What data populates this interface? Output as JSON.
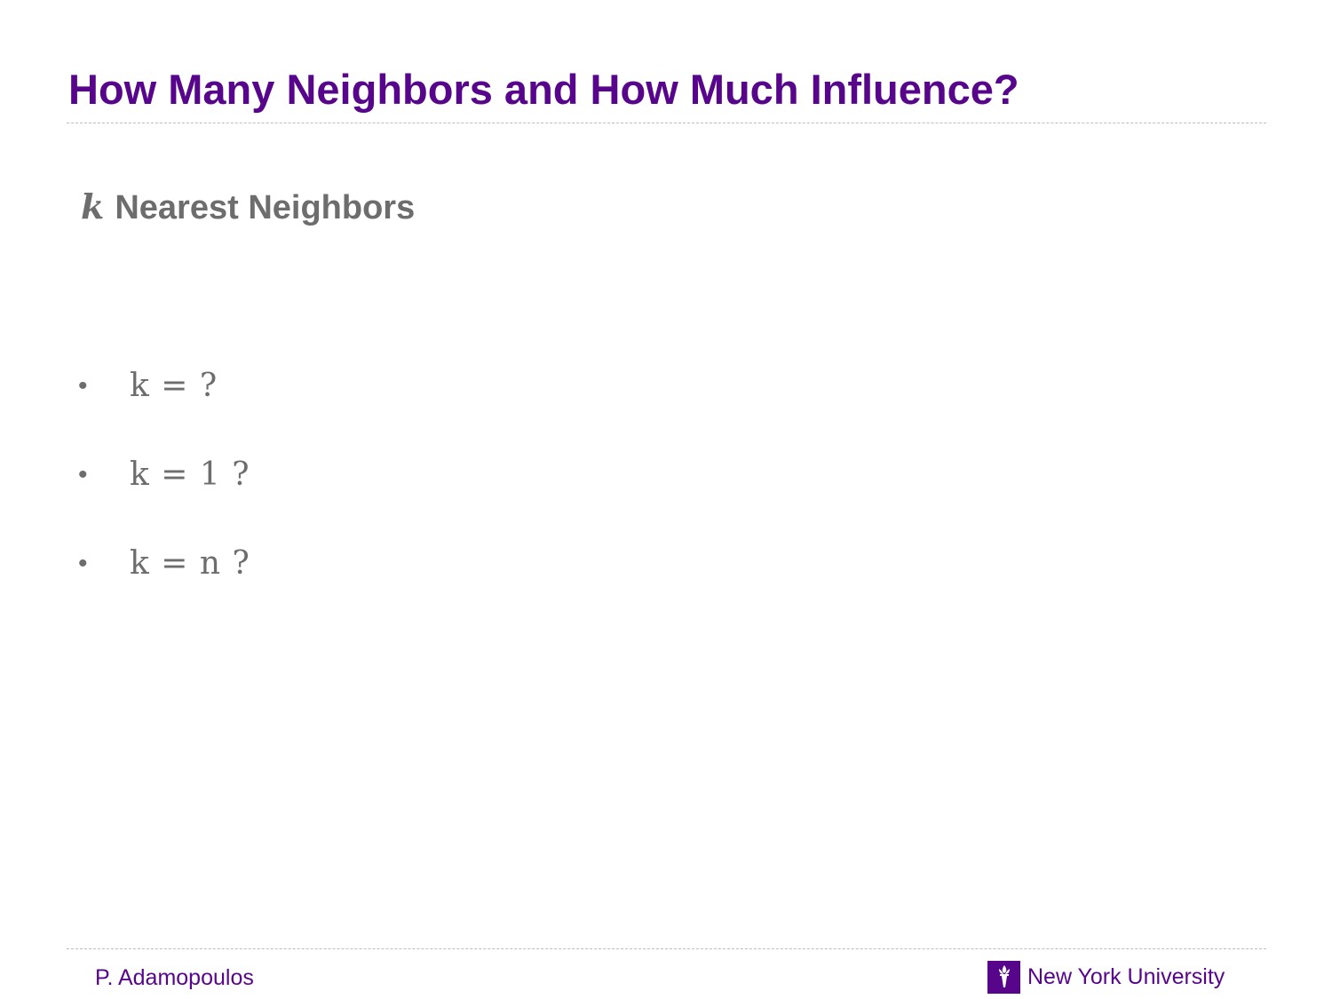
{
  "slide": {
    "title": "How Many Neighbors and How Much Influence?",
    "heading": {
      "variable": "k",
      "text": "Nearest Neighbors"
    },
    "bullets": [
      {
        "marker": "•",
        "expression": "k = ?"
      },
      {
        "marker": "•",
        "expression": "k = 1 ?"
      },
      {
        "marker": "•",
        "expression": "k = n ?"
      }
    ]
  },
  "footer": {
    "author": "P. Adamopoulos",
    "institution": "New York University",
    "logo_icon": "torch-icon"
  },
  "colors": {
    "accent": "#57068c",
    "body_text": "#6d6d6d",
    "rule": "#bdbdbd",
    "background": "#ffffff"
  }
}
